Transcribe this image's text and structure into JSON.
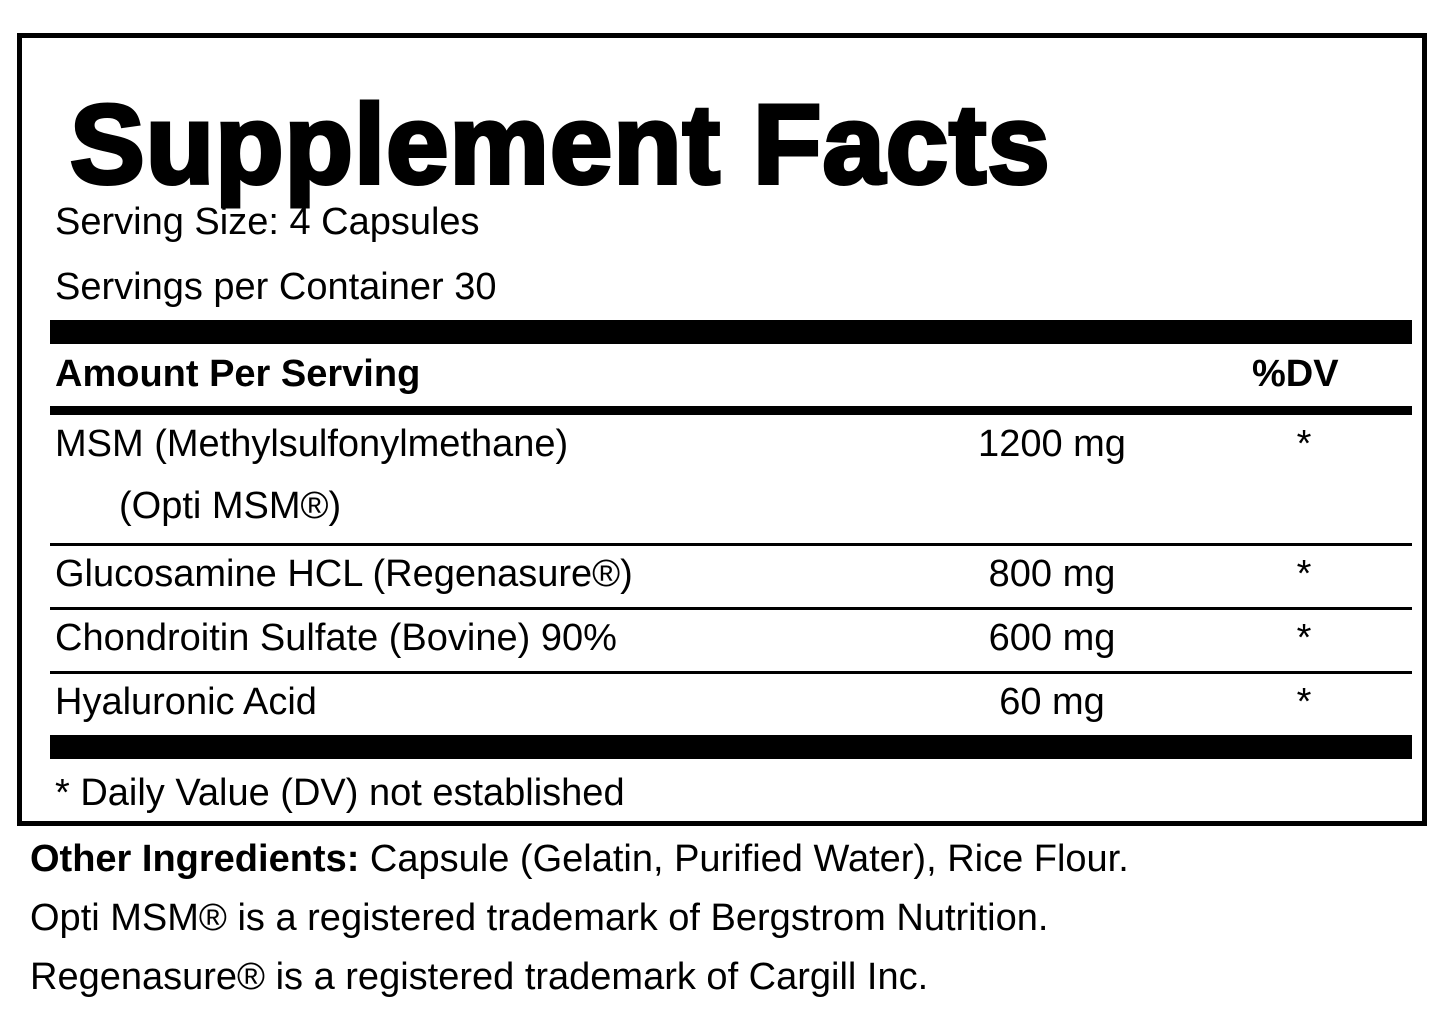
{
  "title": "Supplement Facts",
  "serving_size": "Serving Size:  4 Capsules",
  "servings_per_container": "Servings per Container 30",
  "header": {
    "amount": "Amount Per Serving",
    "dv": "%DV"
  },
  "rows": [
    {
      "name": "MSM (Methylsulfonylmethane)",
      "sub": "(Opti MSM®)",
      "amount": "1200 mg",
      "dv": "*"
    },
    {
      "name": "Glucosamine HCL (Regenasure®)",
      "amount": "800 mg",
      "dv": "*"
    },
    {
      "name": "Chondroitin Sulfate (Bovine) 90%",
      "amount": "600 mg",
      "dv": "*"
    },
    {
      "name": "Hyaluronic Acid",
      "amount": "60 mg",
      "dv": "*"
    }
  ],
  "footnote": "* Daily Value (DV) not established",
  "other": {
    "label": "Other Ingredients:",
    "text": " Capsule (Gelatin, Purified Water), Rice Flour."
  },
  "notes": [
    "Opti MSM® is a registered trademark of Bergstrom Nutrition.",
    "Regenasure® is a registered trademark of Cargill Inc."
  ]
}
